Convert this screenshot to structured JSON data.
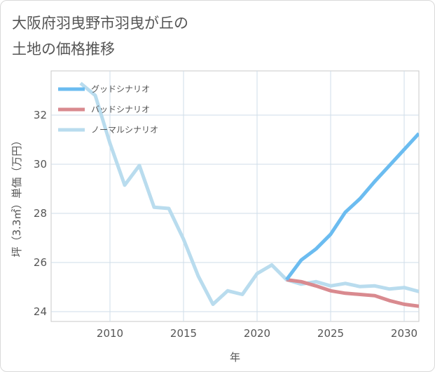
{
  "title": "大阪府羽曳野市羽曳が丘の\n土地の価格推移",
  "chart_data": {
    "type": "line",
    "xlabel": "年",
    "ylabel": "坪（3.3㎡）単価（万円）",
    "xlim": [
      2006,
      2031
    ],
    "ylim": [
      23.6,
      33.8
    ],
    "xticks": [
      2010,
      2015,
      2020,
      2025,
      2030
    ],
    "yticks": [
      24,
      26,
      28,
      30,
      32
    ],
    "grid": true,
    "legend_position": "top-left",
    "series": [
      {
        "name": "グッドシナリオ",
        "color": "#6bbcf0",
        "x": [
          2022,
          2023,
          2024,
          2025,
          2026,
          2027,
          2028,
          2029,
          2030,
          2031
        ],
        "y": [
          25.3,
          26.1,
          26.55,
          27.15,
          28.05,
          28.6,
          29.3,
          29.95,
          30.6,
          31.25
        ]
      },
      {
        "name": "バッドシナリオ",
        "color": "#d98a8f",
        "x": [
          2022,
          2023,
          2024,
          2025,
          2026,
          2027,
          2028,
          2029,
          2030,
          2031
        ],
        "y": [
          25.3,
          25.22,
          25.05,
          24.85,
          24.75,
          24.7,
          24.65,
          24.45,
          24.3,
          24.22
        ]
      },
      {
        "name": "ノーマルシナリオ",
        "color": "#b9dcee",
        "x": [
          2008,
          2009,
          2010,
          2011,
          2012,
          2013,
          2014,
          2015,
          2016,
          2017,
          2018,
          2019,
          2020,
          2021,
          2022,
          2023,
          2024,
          2025,
          2026,
          2027,
          2028,
          2029,
          2030,
          2031
        ],
        "y": [
          33.3,
          32.8,
          30.85,
          29.15,
          29.95,
          28.25,
          28.2,
          26.95,
          25.45,
          24.3,
          24.85,
          24.7,
          25.55,
          25.9,
          25.3,
          25.12,
          25.22,
          25.05,
          25.15,
          25.02,
          25.05,
          24.92,
          24.98,
          24.82
        ]
      }
    ]
  }
}
